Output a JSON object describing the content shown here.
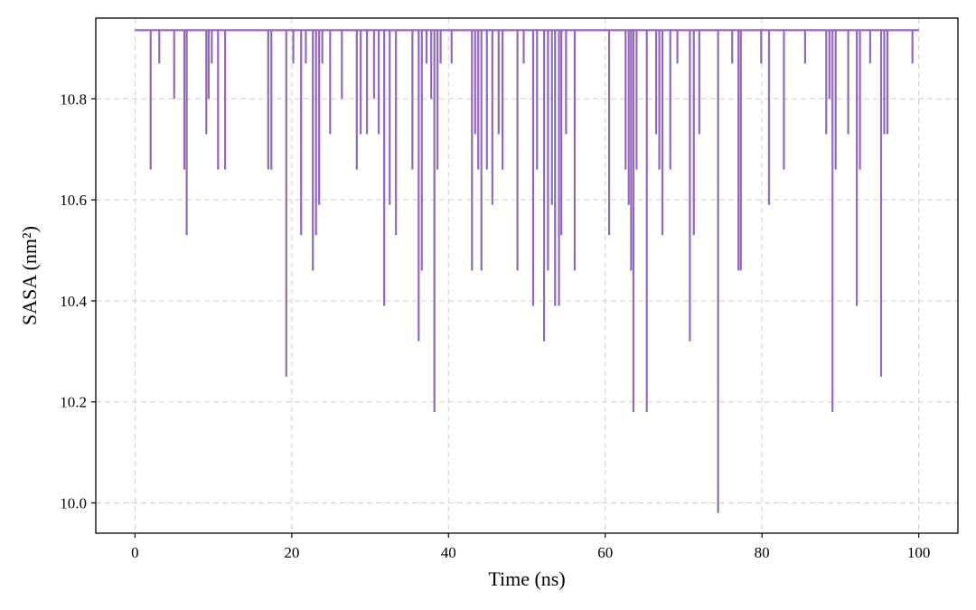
{
  "chart_data": {
    "type": "line",
    "title": "",
    "xlabel": "Time (ns)",
    "ylabel": "SASA (nm²)",
    "xlim": [
      -5,
      105
    ],
    "ylim": [
      9.94,
      10.96
    ],
    "xticks": [
      0,
      20,
      40,
      60,
      80,
      100
    ],
    "yticks": [
      10.0,
      10.2,
      10.4,
      10.6,
      10.8
    ],
    "ytick_labels": [
      "10.0",
      "10.2",
      "10.4",
      "10.6",
      "10.8"
    ],
    "grid": true,
    "legend": "none",
    "baseline": 10.936,
    "series": [
      {
        "color": "#9467bd",
        "x_start": 0,
        "x_end": 100,
        "dips": [
          {
            "x": 2.0,
            "y": 10.66
          },
          {
            "x": 3.1,
            "y": 10.87
          },
          {
            "x": 5.0,
            "y": 10.8
          },
          {
            "x": 6.3,
            "y": 10.66
          },
          {
            "x": 6.6,
            "y": 10.53
          },
          {
            "x": 9.1,
            "y": 10.73
          },
          {
            "x": 9.4,
            "y": 10.8
          },
          {
            "x": 9.8,
            "y": 10.87
          },
          {
            "x": 10.6,
            "y": 10.66
          },
          {
            "x": 11.5,
            "y": 10.66
          },
          {
            "x": 17.0,
            "y": 10.66
          },
          {
            "x": 17.4,
            "y": 10.66
          },
          {
            "x": 19.3,
            "y": 10.25
          },
          {
            "x": 20.2,
            "y": 10.87
          },
          {
            "x": 21.2,
            "y": 10.53
          },
          {
            "x": 21.8,
            "y": 10.87
          },
          {
            "x": 22.7,
            "y": 10.46
          },
          {
            "x": 23.1,
            "y": 10.53
          },
          {
            "x": 23.5,
            "y": 10.59
          },
          {
            "x": 23.9,
            "y": 10.87
          },
          {
            "x": 24.9,
            "y": 10.73
          },
          {
            "x": 26.4,
            "y": 10.8
          },
          {
            "x": 28.3,
            "y": 10.66
          },
          {
            "x": 28.8,
            "y": 10.73
          },
          {
            "x": 29.6,
            "y": 10.73
          },
          {
            "x": 30.5,
            "y": 10.8
          },
          {
            "x": 31.1,
            "y": 10.73
          },
          {
            "x": 31.8,
            "y": 10.39
          },
          {
            "x": 32.5,
            "y": 10.59
          },
          {
            "x": 33.3,
            "y": 10.53
          },
          {
            "x": 35.4,
            "y": 10.66
          },
          {
            "x": 36.2,
            "y": 10.32
          },
          {
            "x": 36.6,
            "y": 10.46
          },
          {
            "x": 37.2,
            "y": 10.87
          },
          {
            "x": 37.8,
            "y": 10.8
          },
          {
            "x": 38.2,
            "y": 10.18
          },
          {
            "x": 38.6,
            "y": 10.66
          },
          {
            "x": 39.0,
            "y": 10.87
          },
          {
            "x": 40.4,
            "y": 10.87
          },
          {
            "x": 43.0,
            "y": 10.46
          },
          {
            "x": 43.4,
            "y": 10.73
          },
          {
            "x": 43.8,
            "y": 10.66
          },
          {
            "x": 44.2,
            "y": 10.46
          },
          {
            "x": 44.9,
            "y": 10.66
          },
          {
            "x": 45.6,
            "y": 10.59
          },
          {
            "x": 46.4,
            "y": 10.73
          },
          {
            "x": 46.9,
            "y": 10.66
          },
          {
            "x": 48.8,
            "y": 10.46
          },
          {
            "x": 49.6,
            "y": 10.87
          },
          {
            "x": 50.8,
            "y": 10.39
          },
          {
            "x": 51.3,
            "y": 10.66
          },
          {
            "x": 52.2,
            "y": 10.32
          },
          {
            "x": 52.7,
            "y": 10.46
          },
          {
            "x": 53.2,
            "y": 10.59
          },
          {
            "x": 53.6,
            "y": 10.39
          },
          {
            "x": 54.1,
            "y": 10.39
          },
          {
            "x": 54.4,
            "y": 10.53
          },
          {
            "x": 55.0,
            "y": 10.73
          },
          {
            "x": 56.1,
            "y": 10.46
          },
          {
            "x": 60.5,
            "y": 10.53
          },
          {
            "x": 62.6,
            "y": 10.66
          },
          {
            "x": 63.0,
            "y": 10.59
          },
          {
            "x": 63.3,
            "y": 10.46
          },
          {
            "x": 63.6,
            "y": 10.18
          },
          {
            "x": 64.0,
            "y": 10.66
          },
          {
            "x": 65.3,
            "y": 10.18
          },
          {
            "x": 66.5,
            "y": 10.73
          },
          {
            "x": 66.9,
            "y": 10.66
          },
          {
            "x": 67.3,
            "y": 10.53
          },
          {
            "x": 68.3,
            "y": 10.66
          },
          {
            "x": 69.2,
            "y": 10.87
          },
          {
            "x": 70.8,
            "y": 10.32
          },
          {
            "x": 71.3,
            "y": 10.53
          },
          {
            "x": 72.0,
            "y": 10.73
          },
          {
            "x": 74.4,
            "y": 9.98
          },
          {
            "x": 76.2,
            "y": 10.87
          },
          {
            "x": 77.0,
            "y": 10.46
          },
          {
            "x": 77.3,
            "y": 10.46
          },
          {
            "x": 79.9,
            "y": 10.87
          },
          {
            "x": 80.9,
            "y": 10.59
          },
          {
            "x": 82.8,
            "y": 10.66
          },
          {
            "x": 85.5,
            "y": 10.87
          },
          {
            "x": 88.2,
            "y": 10.73
          },
          {
            "x": 88.6,
            "y": 10.8
          },
          {
            "x": 89.0,
            "y": 10.18
          },
          {
            "x": 89.4,
            "y": 10.66
          },
          {
            "x": 91.0,
            "y": 10.73
          },
          {
            "x": 92.1,
            "y": 10.39
          },
          {
            "x": 92.5,
            "y": 10.66
          },
          {
            "x": 93.8,
            "y": 10.87
          },
          {
            "x": 95.2,
            "y": 10.25
          },
          {
            "x": 95.6,
            "y": 10.73
          },
          {
            "x": 96.0,
            "y": 10.73
          },
          {
            "x": 99.2,
            "y": 10.87
          }
        ]
      }
    ]
  }
}
